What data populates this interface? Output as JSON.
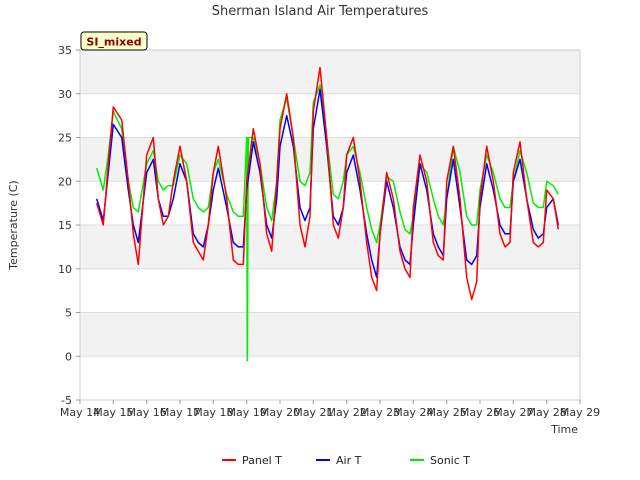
{
  "chart_data": {
    "type": "line",
    "title": "Sherman Island Air Temperatures",
    "xlabel": "Time",
    "ylabel": "Temperature (C)",
    "badge": "SI_mixed",
    "xlim": [
      0,
      15
    ],
    "ylim": [
      -5,
      35
    ],
    "yticks": [
      -5,
      0,
      5,
      10,
      15,
      20,
      25,
      30,
      35
    ],
    "xtick_labels": [
      "May 14",
      "May 15",
      "May 16",
      "May 17",
      "May 18",
      "May 19",
      "May 20",
      "May 21",
      "May 22",
      "May 23",
      "May 24",
      "May 25",
      "May 26",
      "May 27",
      "May 28",
      "May 29"
    ],
    "grid": true,
    "legend_position": "bottom",
    "series": [
      {
        "name": "Panel T",
        "color": "#ff0000",
        "x": [
          0.5,
          0.7,
          0.85,
          1.0,
          1.25,
          1.45,
          1.6,
          1.75,
          2.0,
          2.2,
          2.35,
          2.5,
          2.65,
          2.8,
          3.0,
          3.2,
          3.4,
          3.55,
          3.7,
          3.85,
          4.0,
          4.15,
          4.4,
          4.6,
          4.75,
          4.9,
          5.0,
          5.2,
          5.4,
          5.6,
          5.75,
          5.9,
          6.0,
          6.2,
          6.4,
          6.6,
          6.75,
          6.9,
          7.0,
          7.2,
          7.4,
          7.6,
          7.75,
          7.9,
          8.0,
          8.2,
          8.4,
          8.6,
          8.75,
          8.9,
          9.0,
          9.2,
          9.4,
          9.6,
          9.75,
          9.9,
          10.0,
          10.2,
          10.4,
          10.6,
          10.75,
          10.9,
          11.0,
          11.2,
          11.4,
          11.6,
          11.75,
          11.9,
          12.0,
          12.2,
          12.4,
          12.6,
          12.75,
          12.9,
          13.0,
          13.2,
          13.4,
          13.6,
          13.75,
          13.9,
          14.0,
          14.2,
          14.35
        ],
        "y": [
          17.5,
          15,
          22,
          28.5,
          27,
          20,
          14,
          10.5,
          23,
          25,
          18,
          15,
          16,
          20,
          24,
          20,
          13,
          12,
          11,
          15,
          21,
          24,
          18,
          11,
          10.5,
          10.5,
          20,
          26,
          22,
          14,
          12,
          20,
          26,
          30,
          25,
          15,
          12.5,
          16,
          28,
          33,
          25,
          15,
          13.5,
          17,
          23,
          25,
          20,
          13,
          9,
          7.5,
          14,
          21,
          18,
          12,
          10,
          9,
          17,
          23,
          20,
          13,
          11.5,
          11,
          20,
          24,
          18,
          9,
          6.5,
          8.5,
          18,
          24,
          20,
          14,
          12.5,
          13,
          21,
          24.5,
          18,
          13,
          12.5,
          13,
          19,
          18,
          14.5
        ]
      },
      {
        "name": "Air T",
        "color": "#0000ff",
        "x": [
          0.5,
          0.7,
          0.85,
          1.0,
          1.25,
          1.45,
          1.6,
          1.75,
          2.0,
          2.2,
          2.35,
          2.5,
          2.65,
          2.8,
          3.0,
          3.2,
          3.4,
          3.55,
          3.7,
          3.85,
          4.0,
          4.15,
          4.4,
          4.6,
          4.75,
          4.9,
          5.0,
          5.2,
          5.4,
          5.6,
          5.75,
          5.9,
          6.0,
          6.2,
          6.4,
          6.6,
          6.75,
          6.9,
          7.0,
          7.2,
          7.4,
          7.6,
          7.75,
          7.9,
          8.0,
          8.2,
          8.4,
          8.6,
          8.75,
          8.9,
          9.0,
          9.2,
          9.4,
          9.6,
          9.75,
          9.9,
          10.0,
          10.2,
          10.4,
          10.6,
          10.75,
          10.9,
          11.0,
          11.2,
          11.4,
          11.6,
          11.75,
          11.9,
          12.0,
          12.2,
          12.4,
          12.6,
          12.75,
          12.9,
          13.0,
          13.2,
          13.4,
          13.6,
          13.75,
          13.9,
          14.0,
          14.2,
          14.35
        ],
        "y": [
          18,
          15.5,
          21,
          26.5,
          25,
          19,
          15,
          13,
          21,
          22.5,
          18,
          16,
          16,
          18,
          22,
          20,
          14,
          13,
          12.5,
          15,
          19,
          21.5,
          17,
          13,
          12.5,
          12.5,
          19,
          24.5,
          21,
          15,
          13.5,
          18,
          24,
          27.5,
          24,
          17,
          15.5,
          17,
          26,
          30.5,
          24,
          16,
          15,
          17,
          21,
          23,
          19,
          14,
          11,
          9,
          14,
          20,
          17,
          12.5,
          11,
          10.5,
          15,
          22,
          19,
          14,
          12.5,
          11.5,
          18,
          22.5,
          17,
          11,
          10.5,
          11.5,
          17,
          22,
          19,
          15,
          14,
          14,
          20,
          22.5,
          18,
          14.5,
          13.5,
          14,
          17,
          18,
          15
        ]
      },
      {
        "name": "Sonic T",
        "color": "#00ee00",
        "x": [
          0.5,
          0.7,
          0.85,
          1.0,
          1.25,
          1.45,
          1.6,
          1.75,
          2.0,
          2.2,
          2.35,
          2.5,
          2.65,
          2.8,
          3.0,
          3.2,
          3.4,
          3.55,
          3.7,
          3.85,
          4.0,
          4.15,
          4.4,
          4.6,
          4.75,
          4.9,
          5.0,
          5.02,
          5.05,
          5.2,
          5.4,
          5.6,
          5.75,
          5.9,
          6.0,
          6.2,
          6.4,
          6.6,
          6.75,
          6.9,
          7.0,
          7.2,
          7.4,
          7.6,
          7.75,
          7.9,
          8.0,
          8.2,
          8.4,
          8.6,
          8.75,
          8.9,
          9.0,
          9.2,
          9.4,
          9.6,
          9.75,
          9.9,
          10.0,
          10.2,
          10.4,
          10.6,
          10.75,
          10.9,
          11.0,
          11.2,
          11.4,
          11.6,
          11.75,
          11.9,
          12.0,
          12.2,
          12.4,
          12.6,
          12.75,
          12.9,
          13.0,
          13.2,
          13.4,
          13.6,
          13.75,
          13.9,
          14.0,
          14.2,
          14.35
        ],
        "y": [
          21.5,
          19,
          23,
          28,
          26,
          20,
          17,
          16.5,
          22,
          23.5,
          20,
          19,
          19.5,
          19.5,
          23,
          22,
          18,
          17,
          16.5,
          17,
          21,
          22.5,
          18.5,
          16.5,
          16,
          16,
          25,
          -0.5,
          25,
          25,
          22,
          17,
          15.5,
          20,
          27,
          29.5,
          25,
          20,
          19.5,
          21,
          29,
          31,
          25,
          18.5,
          18,
          20,
          23,
          24,
          21,
          17,
          14.5,
          13,
          15,
          20.5,
          20,
          16.5,
          14.5,
          14,
          16,
          22,
          21,
          18,
          16,
          15,
          18,
          24,
          21,
          16,
          15,
          15,
          19,
          23,
          21,
          18,
          17,
          17,
          20,
          23.5,
          21,
          17.5,
          17,
          17,
          20,
          19.5,
          18.5
        ]
      }
    ]
  }
}
